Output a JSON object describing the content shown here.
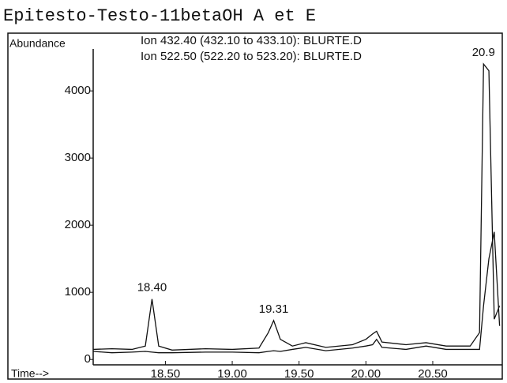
{
  "chart_data": {
    "type": "line",
    "title": "Epitesto-Testo-11betaOH A et E",
    "y_label": "Abundance",
    "x_label": "Time-->",
    "x": [
      17.96,
      18.1,
      18.25,
      18.35,
      18.4,
      18.45,
      18.55,
      18.8,
      19.0,
      19.2,
      19.27,
      19.31,
      19.36,
      19.45,
      19.55,
      19.7,
      19.9,
      20.0,
      20.05,
      20.08,
      20.12,
      20.3,
      20.45,
      20.6,
      20.78,
      20.85,
      20.88,
      20.92,
      20.96,
      21.0
    ],
    "series": [
      {
        "name": "Ion 432.40 (432.10 to 433.10): BLURTE.D",
        "color": "#111111",
        "values": [
          150,
          160,
          150,
          200,
          900,
          200,
          140,
          160,
          150,
          170,
          400,
          580,
          300,
          200,
          250,
          180,
          220,
          300,
          380,
          420,
          260,
          220,
          250,
          200,
          200,
          400,
          4400,
          4300,
          600,
          800
        ]
      },
      {
        "name": "Ion 522.50 (522.20 to 523.20): BLURTE.D",
        "color": "#111111",
        "values": [
          120,
          100,
          110,
          120,
          110,
          100,
          100,
          110,
          110,
          100,
          120,
          130,
          120,
          150,
          180,
          130,
          170,
          200,
          220,
          300,
          180,
          150,
          200,
          150,
          150,
          150,
          800,
          1500,
          1900,
          500
        ]
      }
    ],
    "annotations": [
      {
        "text": "18.40",
        "x": 18.4,
        "y": 900
      },
      {
        "text": "19.31",
        "x": 19.31,
        "y": 580
      },
      {
        "text": "20.9",
        "x": 20.88,
        "y": 4400
      }
    ],
    "xlim": [
      17.96,
      21.02
    ],
    "ylim": [
      -80,
      4860
    ],
    "xticks": [
      {
        "value": 18.5,
        "label": "18.50"
      },
      {
        "value": 19.0,
        "label": "19.00"
      },
      {
        "value": 19.5,
        "label": "19.50"
      },
      {
        "value": 20.0,
        "label": "20.00"
      },
      {
        "value": 20.5,
        "label": "20.50"
      }
    ],
    "yticks": [
      0,
      1000,
      2000,
      3000,
      4000
    ],
    "grid": false
  }
}
